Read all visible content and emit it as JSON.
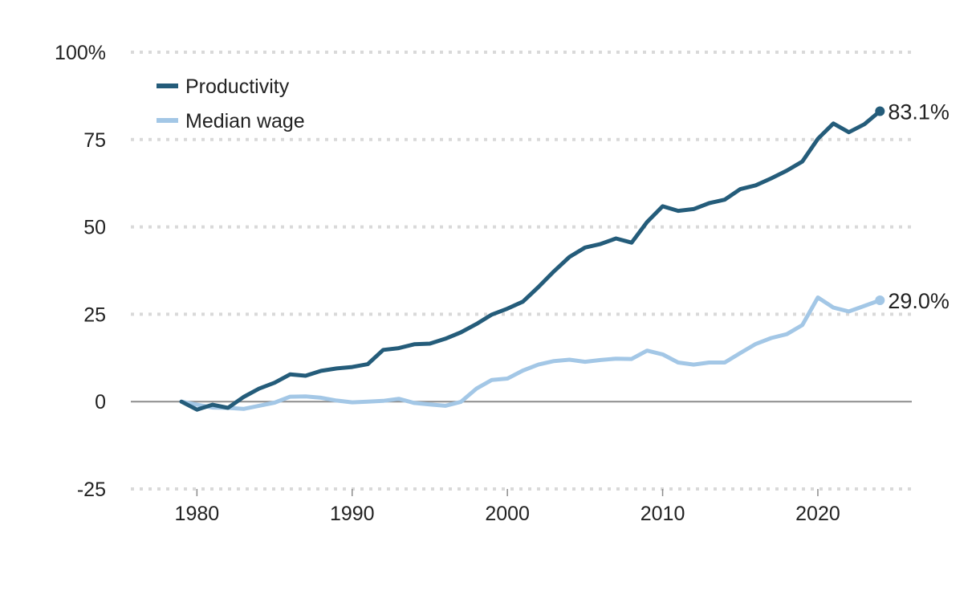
{
  "chart_data": {
    "type": "line",
    "title": "",
    "xlabel": "",
    "ylabel": "",
    "xlim": [
      1976,
      2026
    ],
    "ylim": [
      -25,
      100
    ],
    "x_ticks": [
      1980,
      1990,
      2000,
      2010,
      2020
    ],
    "y_ticks": [
      {
        "value": 100,
        "label": "100%"
      },
      {
        "value": 75,
        "label": "75"
      },
      {
        "value": 50,
        "label": "50"
      },
      {
        "value": 25,
        "label": "25"
      },
      {
        "value": 0,
        "label": "0"
      },
      {
        "value": -25,
        "label": "-25"
      }
    ],
    "grid": true,
    "legend_position": "top-left",
    "x": [
      1979,
      1980,
      1981,
      1982,
      1983,
      1984,
      1985,
      1986,
      1987,
      1988,
      1989,
      1990,
      1991,
      1992,
      1993,
      1994,
      1995,
      1996,
      1997,
      1998,
      1999,
      2000,
      2001,
      2002,
      2003,
      2004,
      2005,
      2006,
      2007,
      2008,
      2009,
      2010,
      2011,
      2012,
      2013,
      2014,
      2015,
      2016,
      2017,
      2018,
      2019,
      2020,
      2021,
      2022,
      2023,
      2024
    ],
    "series": [
      {
        "name": "Productivity",
        "color": "#245c7a",
        "end_label": "83.1%",
        "values": [
          0.0,
          -2.3,
          -0.9,
          -1.8,
          1.3,
          3.7,
          5.4,
          7.8,
          7.4,
          8.8,
          9.5,
          9.9,
          10.7,
          14.8,
          15.3,
          16.4,
          16.6,
          18.0,
          19.8,
          22.2,
          24.9,
          26.6,
          28.6,
          32.8,
          37.3,
          41.4,
          44.1,
          45.1,
          46.7,
          45.5,
          51.4,
          55.9,
          54.6,
          55.1,
          56.8,
          57.8,
          60.8,
          61.9,
          63.9,
          66.1,
          68.7,
          75.2,
          79.6,
          77.1,
          79.4,
          83.1
        ]
      },
      {
        "name": "Median wage",
        "color": "#a3c7e6",
        "end_label": "29.0%",
        "values": [
          0.0,
          -0.9,
          -1.7,
          -1.8,
          -2.1,
          -1.2,
          -0.3,
          1.4,
          1.5,
          1.1,
          0.3,
          -0.2,
          0.0,
          0.2,
          0.8,
          -0.4,
          -0.8,
          -1.2,
          -0.1,
          3.7,
          6.2,
          6.6,
          8.9,
          10.6,
          11.6,
          12.0,
          11.4,
          11.9,
          12.3,
          12.2,
          14.6,
          13.5,
          11.2,
          10.6,
          11.2,
          11.2,
          13.9,
          16.5,
          18.2,
          19.3,
          21.9,
          29.8,
          26.9,
          25.8,
          27.4,
          29.0
        ]
      }
    ]
  }
}
